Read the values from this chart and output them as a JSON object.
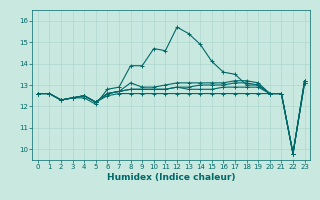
{
  "xlabel": "Humidex (Indice chaleur)",
  "background_color": "#c8e8e0",
  "grid_color": "#b0d8d0",
  "line_color": "#006868",
  "xlim": [
    -0.5,
    23.5
  ],
  "ylim": [
    9.5,
    16.5
  ],
  "yticks": [
    10,
    11,
    12,
    13,
    14,
    15,
    16
  ],
  "xticks": [
    0,
    1,
    2,
    3,
    4,
    5,
    6,
    7,
    8,
    9,
    10,
    11,
    12,
    13,
    14,
    15,
    16,
    17,
    18,
    19,
    20,
    21,
    22,
    23
  ],
  "series": [
    [
      12.6,
      12.6,
      12.3,
      12.4,
      12.4,
      12.1,
      12.8,
      12.9,
      13.9,
      13.9,
      14.7,
      14.6,
      15.7,
      15.4,
      14.9,
      14.1,
      13.6,
      13.5,
      13.0,
      13.0,
      12.6,
      12.6,
      9.8,
      13.1
    ],
    [
      12.6,
      12.6,
      12.3,
      12.4,
      12.5,
      12.2,
      12.6,
      12.7,
      13.1,
      12.9,
      12.9,
      13.0,
      13.1,
      13.1,
      13.1,
      13.1,
      13.1,
      13.2,
      13.2,
      13.1,
      12.6,
      12.6,
      9.8,
      13.2
    ],
    [
      12.6,
      12.6,
      12.3,
      12.4,
      12.5,
      12.2,
      12.6,
      12.7,
      12.8,
      12.8,
      12.8,
      12.8,
      12.9,
      12.9,
      13.0,
      13.0,
      13.0,
      13.1,
      13.1,
      13.0,
      12.6,
      12.6,
      9.8,
      13.2
    ],
    [
      12.6,
      12.6,
      12.3,
      12.4,
      12.5,
      12.2,
      12.6,
      12.7,
      12.8,
      12.8,
      12.8,
      12.8,
      12.9,
      12.8,
      12.8,
      12.8,
      12.9,
      12.9,
      12.9,
      12.9,
      12.6,
      12.6,
      9.8,
      13.2
    ],
    [
      12.6,
      12.6,
      12.3,
      12.4,
      12.5,
      12.2,
      12.5,
      12.6,
      12.6,
      12.6,
      12.6,
      12.6,
      12.6,
      12.6,
      12.6,
      12.6,
      12.6,
      12.6,
      12.6,
      12.6,
      12.6,
      12.6,
      9.8,
      13.1
    ]
  ]
}
